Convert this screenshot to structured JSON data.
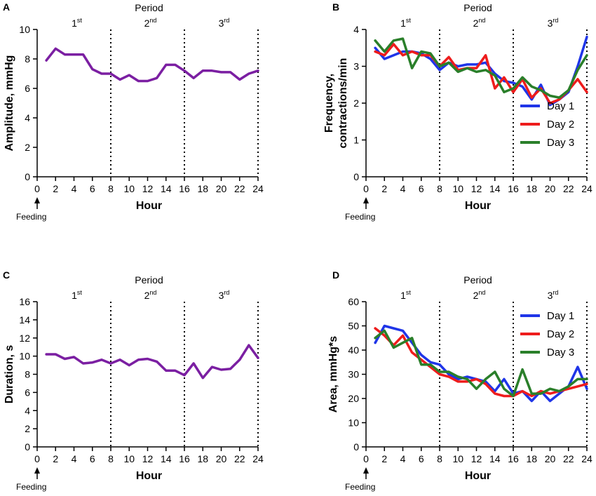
{
  "colors": {
    "single": "#7B1FA2",
    "day1": "#1F35E8",
    "day2": "#EE1C1C",
    "day3": "#2A7F2A",
    "axis": "#000000"
  },
  "common": {
    "x_label": "Hour",
    "period_title": "Period",
    "feeding_label": "Feeding",
    "feeding_icon": "arrow-up-icon",
    "period_labels": [
      {
        "base": "1",
        "sup": "st"
      },
      {
        "base": "2",
        "sup": "nd"
      },
      {
        "base": "3",
        "sup": "rd"
      }
    ],
    "period_boundaries": [
      8,
      16,
      24
    ]
  },
  "chart_data": [
    {
      "panel": "A",
      "type": "line",
      "title": "",
      "ylabel": [
        "Amplitude, mmHg"
      ],
      "xlabel": "Hour",
      "xlim": [
        0,
        24
      ],
      "xticks": [
        0,
        2,
        4,
        6,
        8,
        10,
        12,
        14,
        16,
        18,
        20,
        22,
        24
      ],
      "ylim": [
        0,
        10
      ],
      "yticks": [
        0,
        2,
        4,
        6,
        8,
        10
      ],
      "legend": null,
      "x": [
        1,
        2,
        3,
        4,
        5,
        6,
        7,
        8,
        9,
        10,
        11,
        12,
        13,
        14,
        15,
        16,
        17,
        18,
        19,
        20,
        21,
        22,
        23,
        24
      ],
      "series": [
        {
          "name": "",
          "color_key": "single",
          "values": [
            7.9,
            8.7,
            8.3,
            8.3,
            8.3,
            7.3,
            7.0,
            7.0,
            6.6,
            6.9,
            6.5,
            6.5,
            6.7,
            7.6,
            7.6,
            7.2,
            6.7,
            7.2,
            7.2,
            7.1,
            7.1,
            6.6,
            7.0,
            7.2
          ]
        }
      ]
    },
    {
      "panel": "B",
      "type": "line",
      "title": "",
      "ylabel": [
        "Frequency,",
        "contractions/min"
      ],
      "xlabel": "Hour",
      "xlim": [
        0,
        24
      ],
      "xticks": [
        0,
        2,
        4,
        6,
        8,
        10,
        12,
        14,
        16,
        18,
        20,
        22,
        24
      ],
      "ylim": [
        0,
        4
      ],
      "yticks": [
        0,
        1,
        2,
        3,
        4
      ],
      "legend": "lower-right",
      "x": [
        1,
        2,
        3,
        4,
        5,
        6,
        7,
        8,
        9,
        10,
        11,
        12,
        13,
        14,
        15,
        16,
        17,
        18,
        19,
        20,
        21,
        22,
        23,
        24
      ],
      "series": [
        {
          "name": "Day 1",
          "color_key": "day1",
          "values": [
            3.5,
            3.2,
            3.3,
            3.4,
            3.4,
            3.35,
            3.2,
            2.9,
            3.1,
            3.0,
            3.05,
            3.05,
            3.1,
            2.8,
            2.6,
            2.55,
            2.45,
            2.1,
            2.5,
            1.95,
            2.1,
            2.3,
            3.0,
            3.8
          ]
        },
        {
          "name": "Day 2",
          "color_key": "day2",
          "values": [
            3.4,
            3.3,
            3.6,
            3.3,
            3.4,
            3.3,
            3.3,
            3.0,
            3.25,
            2.9,
            2.95,
            2.95,
            3.3,
            2.4,
            2.7,
            2.3,
            2.65,
            2.15,
            2.4,
            2.0,
            2.1,
            2.35,
            2.65,
            2.3
          ]
        },
        {
          "name": "Day 3",
          "color_key": "day3",
          "values": [
            3.7,
            3.4,
            3.7,
            3.75,
            2.95,
            3.4,
            3.35,
            3.0,
            3.1,
            2.85,
            2.95,
            2.85,
            2.9,
            2.75,
            2.3,
            2.4,
            2.7,
            2.45,
            2.35,
            2.2,
            2.15,
            2.35,
            2.9,
            3.3
          ]
        }
      ]
    },
    {
      "panel": "C",
      "type": "line",
      "title": "",
      "ylabel": [
        "Duration, s"
      ],
      "xlabel": "Hour",
      "xlim": [
        0,
        24
      ],
      "xticks": [
        0,
        2,
        4,
        6,
        8,
        10,
        12,
        14,
        16,
        18,
        20,
        22,
        24
      ],
      "ylim": [
        0,
        16
      ],
      "yticks": [
        0,
        2,
        4,
        6,
        8,
        10,
        12,
        14,
        16
      ],
      "legend": null,
      "x": [
        1,
        2,
        3,
        4,
        5,
        6,
        7,
        8,
        9,
        10,
        11,
        12,
        13,
        14,
        15,
        16,
        17,
        18,
        19,
        20,
        21,
        22,
        23,
        24
      ],
      "series": [
        {
          "name": "",
          "color_key": "single",
          "values": [
            10.2,
            10.2,
            9.7,
            9.9,
            9.2,
            9.3,
            9.6,
            9.2,
            9.6,
            9.0,
            9.6,
            9.7,
            9.4,
            8.4,
            8.4,
            7.9,
            9.2,
            7.6,
            8.8,
            8.5,
            8.6,
            9.6,
            11.2,
            9.8
          ]
        }
      ]
    },
    {
      "panel": "D",
      "type": "line",
      "title": "",
      "ylabel": [
        "Area, mmHg*s"
      ],
      "xlabel": "Hour",
      "xlim": [
        0,
        24
      ],
      "xticks": [
        0,
        2,
        4,
        6,
        8,
        10,
        12,
        14,
        16,
        18,
        20,
        22,
        24
      ],
      "ylim": [
        0,
        60
      ],
      "yticks": [
        0,
        10,
        20,
        30,
        40,
        50,
        60
      ],
      "legend": "top-right",
      "x": [
        1,
        2,
        3,
        4,
        5,
        6,
        7,
        8,
        9,
        10,
        11,
        12,
        13,
        14,
        15,
        16,
        17,
        18,
        19,
        20,
        21,
        22,
        23,
        24
      ],
      "series": [
        {
          "name": "Day 1",
          "color_key": "day1",
          "values": [
            43,
            50,
            49,
            48,
            43,
            38,
            35,
            34,
            30,
            28,
            29,
            28,
            27,
            23,
            28,
            22,
            23,
            19,
            23,
            19,
            22,
            25,
            33,
            24
          ]
        },
        {
          "name": "Day 2",
          "color_key": "day2",
          "values": [
            49,
            46,
            42,
            46,
            39,
            36,
            33,
            30,
            29,
            27,
            27,
            28,
            26,
            22,
            21,
            21,
            23,
            21,
            23,
            22,
            23,
            24,
            25,
            26
          ]
        },
        {
          "name": "Day 3",
          "color_key": "day3",
          "values": [
            45,
            48,
            41,
            43,
            45,
            34,
            34,
            31,
            31,
            29,
            28,
            24,
            28,
            31,
            24,
            21,
            32,
            22,
            22,
            24,
            23,
            25,
            28,
            28
          ]
        }
      ]
    }
  ]
}
